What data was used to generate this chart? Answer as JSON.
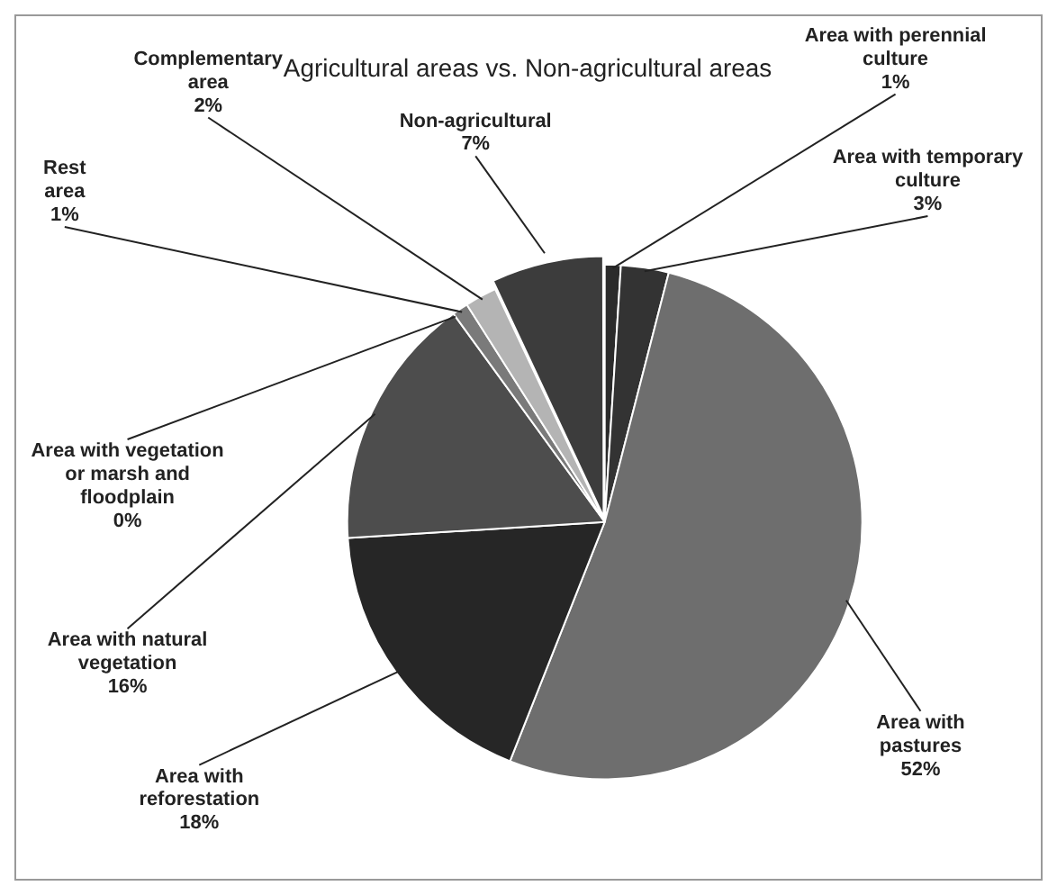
{
  "chart_data": {
    "type": "pie",
    "title": "Agricultural areas vs. Non-agricultural areas",
    "categories": [
      "Area with perennial culture",
      "Area with temporary culture",
      "Area with pastures",
      "Area with reforestation",
      "Area with natural vegetation",
      "Area with vegetation or marsh and floodplain",
      "Rest area",
      "Complementary area",
      "Non-agricultural"
    ],
    "values": [
      1,
      3,
      52,
      18,
      16,
      0,
      1,
      2,
      7
    ],
    "value_labels": [
      "1%",
      "3%",
      "52%",
      "18%",
      "16%",
      "0%",
      "1%",
      "2%",
      "7%"
    ],
    "colors": [
      "#2b2b2b",
      "#333333",
      "#6e6e6e",
      "#262626",
      "#4d4d4d",
      "#3a3a3a",
      "#7a7a7a",
      "#b4b4b4",
      "#3c3c3c"
    ],
    "legend": false
  }
}
